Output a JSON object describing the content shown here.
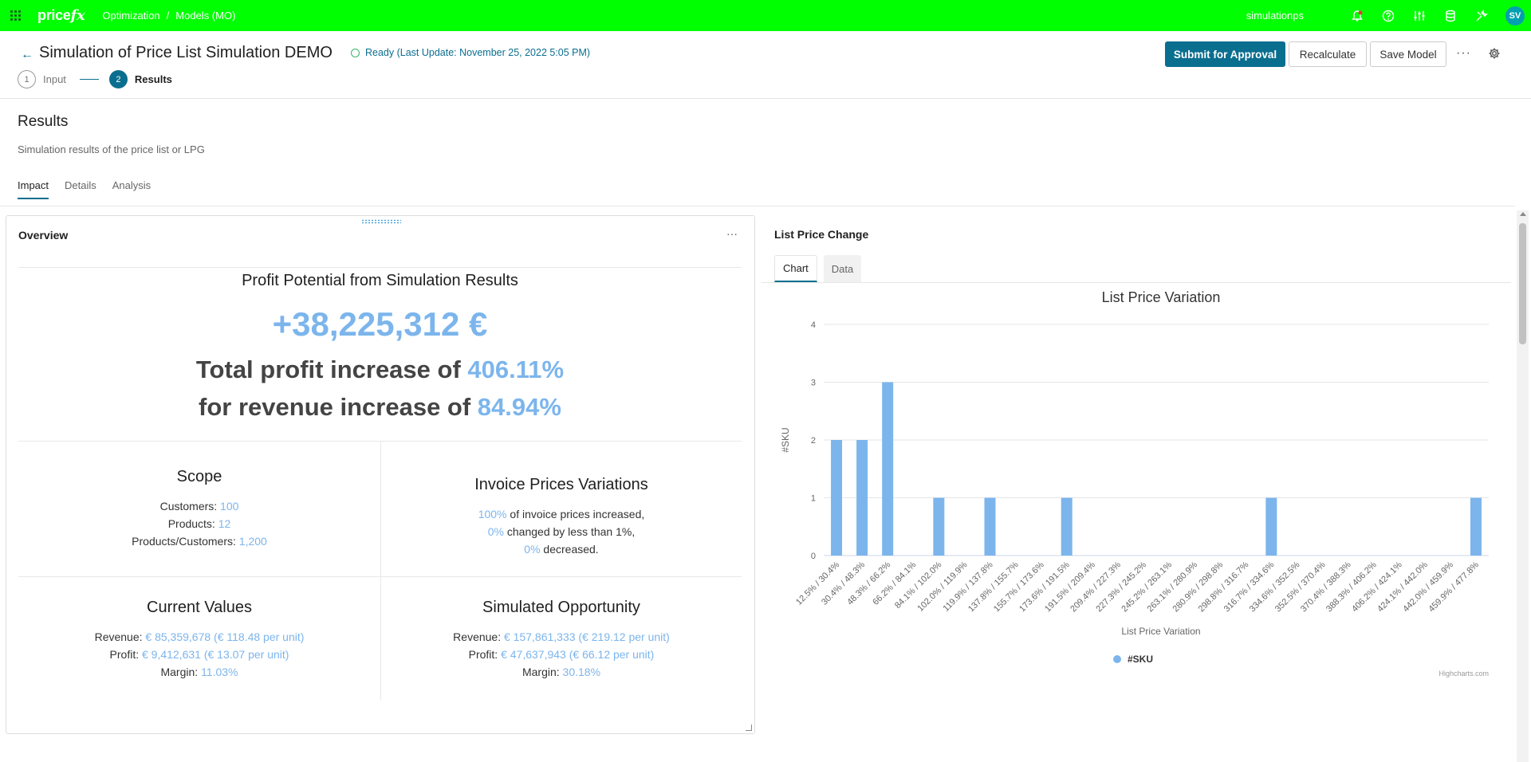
{
  "topbar": {
    "logo_main": "price",
    "logo_fx": "fx",
    "breadcrumb": [
      "Optimization",
      "/",
      "Models (MO)"
    ],
    "user": "simulationps",
    "avatar": "SV",
    "icons": [
      "notification-icon",
      "help-icon",
      "sliders-icon",
      "database-icon",
      "tools-icon"
    ],
    "color": "#00ff00"
  },
  "header": {
    "title": "Simulation of Price List Simulation DEMO",
    "status": "Ready (Last Update: November 25, 2022 5:05 PM)",
    "steps": [
      {
        "num": "1",
        "label": "Input"
      },
      {
        "num": "2",
        "label": "Results"
      }
    ],
    "buttons": {
      "submit": "Submit for Approval",
      "recalculate": "Recalculate",
      "save": "Save Model"
    },
    "accent": "#0a6e8f"
  },
  "section": {
    "title": "Results",
    "subtitle": "Simulation results of the price list or LPG",
    "tabs": [
      "Impact",
      "Details",
      "Analysis"
    ]
  },
  "overview": {
    "title": "Overview",
    "profit_title": "Profit Potential from Simulation Results",
    "profit_value": "+38,225,312 €",
    "profit_increase_text": "Total profit increase of ",
    "profit_increase_value": "406.11%",
    "revenue_increase_text": "for revenue increase of ",
    "revenue_increase_value": "84.94%",
    "scope": {
      "title": "Scope",
      "customers_label": "Customers: ",
      "customers": "100",
      "products_label": "Products: ",
      "products": "12",
      "pc_label": "Products/Customers: ",
      "pc": "1,200"
    },
    "invoice": {
      "title": "Invoice Prices Variations",
      "increased_value": "100%",
      "increased_text": " of invoice prices increased,",
      "changed_value": "0%",
      "changed_text": " changed by less than 1%,",
      "decreased_value": "0%",
      "decreased_text": " decreased."
    },
    "current": {
      "title": "Current Values",
      "revenue_label": "Revenue: ",
      "revenue": "€ 85,359,678 (€ 118.48 per unit)",
      "profit_label": "Profit: ",
      "profit": "€ 9,412,631 (€ 13.07 per unit)",
      "margin_label": "Margin: ",
      "margin": "11.03%"
    },
    "simulated": {
      "title": "Simulated Opportunity",
      "revenue_label": "Revenue: ",
      "revenue": "€ 157,861,333 (€ 219.12 per unit)",
      "profit_label": "Profit: ",
      "profit": "€ 47,637,943 (€ 66.12 per unit)",
      "margin_label": "Margin: ",
      "margin": "30.18%"
    }
  },
  "list_price": {
    "title": "List Price Change",
    "tabs": [
      "Chart",
      "Data"
    ],
    "credit": "Highcharts.com"
  },
  "chart_data": {
    "type": "bar",
    "title": "List Price Variation",
    "xlabel": "List Price Variation",
    "ylabel": "#SKU",
    "ylim": [
      0,
      4
    ],
    "yticks": [
      0,
      1,
      2,
      3,
      4
    ],
    "grid": true,
    "legend": "bottom-center",
    "color": "#7cb5ec",
    "categories": [
      "12.5% / 30.4%",
      "30.4% / 48.3%",
      "48.3% / 66.2%",
      "66.2% / 84.1%",
      "84.1% / 102.0%",
      "102.0% / 119.9%",
      "119.9% / 137.8%",
      "137.8% / 155.7%",
      "155.7% / 173.6%",
      "173.6% / 191.5%",
      "191.5% / 209.4%",
      "209.4% / 227.3%",
      "227.3% / 245.2%",
      "245.2% / 263.1%",
      "263.1% / 280.9%",
      "280.9% / 298.8%",
      "298.8% / 316.7%",
      "316.7% / 334.6%",
      "334.6% / 352.5%",
      "352.5% / 370.4%",
      "370.4% / 388.3%",
      "388.3% / 406.2%",
      "406.2% / 424.1%",
      "424.1% / 442.0%",
      "442.0% / 459.9%",
      "459.9% / 477.8%"
    ],
    "series": [
      {
        "name": "#SKU",
        "values": [
          2,
          2,
          3,
          0,
          1,
          0,
          1,
          0,
          0,
          1,
          0,
          0,
          0,
          0,
          0,
          0,
          0,
          1,
          0,
          0,
          0,
          0,
          0,
          0,
          0,
          1
        ]
      }
    ]
  }
}
